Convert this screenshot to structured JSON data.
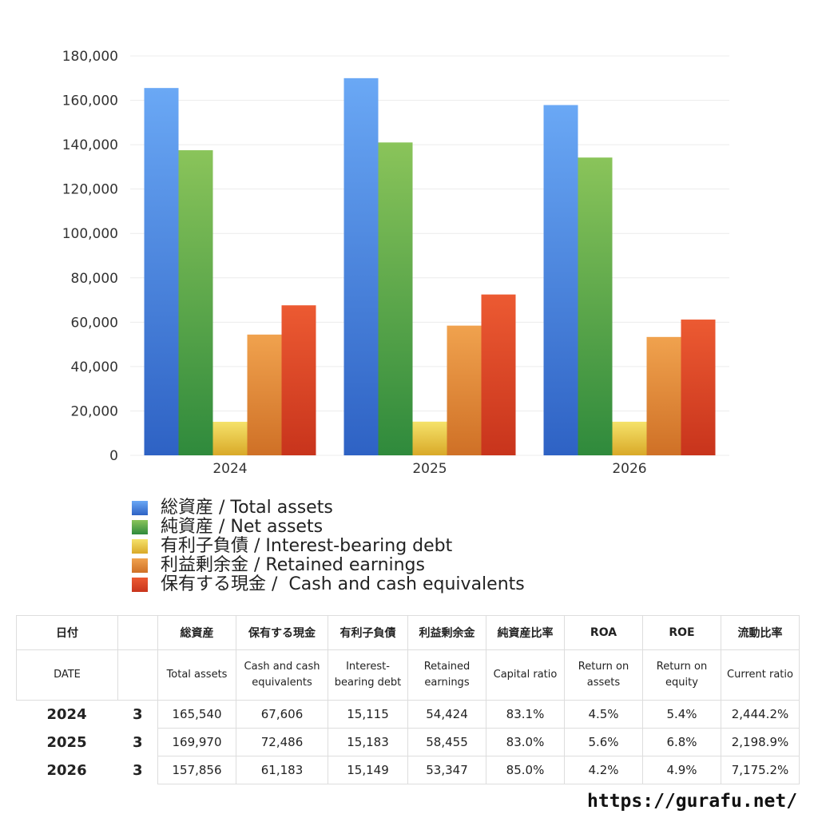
{
  "chart_data": {
    "type": "bar",
    "categories": [
      "2024",
      "2025",
      "2026"
    ],
    "ylim": [
      0,
      180000
    ],
    "yticks": [
      0,
      20000,
      40000,
      60000,
      80000,
      100000,
      120000,
      140000,
      160000,
      180000
    ],
    "ytick_labels": [
      "0",
      "20,000",
      "40,000",
      "60,000",
      "80,000",
      "100,000",
      "120,000",
      "140,000",
      "160,000",
      "180,000"
    ],
    "grid": true,
    "legend_position": "bottom",
    "series": [
      {
        "name": "総資産 / Total assets",
        "values": [
          165540,
          169970,
          157856
        ],
        "color_top": "#6aa8f5",
        "color_bottom": "#2e62c4"
      },
      {
        "name": "純資産 / Net assets",
        "values": [
          137500,
          141000,
          134200
        ],
        "color_top": "#8ac45a",
        "color_bottom": "#2f8a3c"
      },
      {
        "name": "有利子負債 / Interest-bearing debt",
        "values": [
          15115,
          15183,
          15149
        ],
        "color_top": "#f5e26a",
        "color_bottom": "#d9a928"
      },
      {
        "name": "利益剰余金 / Retained earnings",
        "values": [
          54424,
          58455,
          53347
        ],
        "color_top": "#f0a24e",
        "color_bottom": "#cf7026"
      },
      {
        "name": "保有する現金 /  Cash and cash equivalents",
        "values": [
          67606,
          72486,
          61183
        ],
        "color_top": "#ec5a32",
        "color_bottom": "#c8341c"
      }
    ]
  },
  "table": {
    "headers_ja": [
      "日付",
      "",
      "総資産",
      "保有する現金",
      "有利子負債",
      "利益剰余金",
      "純資産比率",
      "ROA",
      "ROE",
      "流動比率"
    ],
    "headers_en": [
      "DATE",
      "",
      "Total assets",
      "Cash and cash equivalents",
      "Interest-bearing debt",
      "Retained earnings",
      "Capital ratio",
      "Return on assets",
      "Return on equity",
      "Current ratio"
    ],
    "rows": [
      [
        "2024",
        "3",
        "165,540",
        "67,606",
        "15,115",
        "54,424",
        "83.1%",
        "4.5%",
        "5.4%",
        "2,444.2%"
      ],
      [
        "2025",
        "3",
        "169,970",
        "72,486",
        "15,183",
        "58,455",
        "83.0%",
        "5.6%",
        "6.8%",
        "2,198.9%"
      ],
      [
        "2026",
        "3",
        "157,856",
        "61,183",
        "15,149",
        "53,347",
        "85.0%",
        "4.2%",
        "4.9%",
        "7,175.2%"
      ]
    ]
  },
  "footer": {
    "url": "https://gurafu.net/"
  }
}
